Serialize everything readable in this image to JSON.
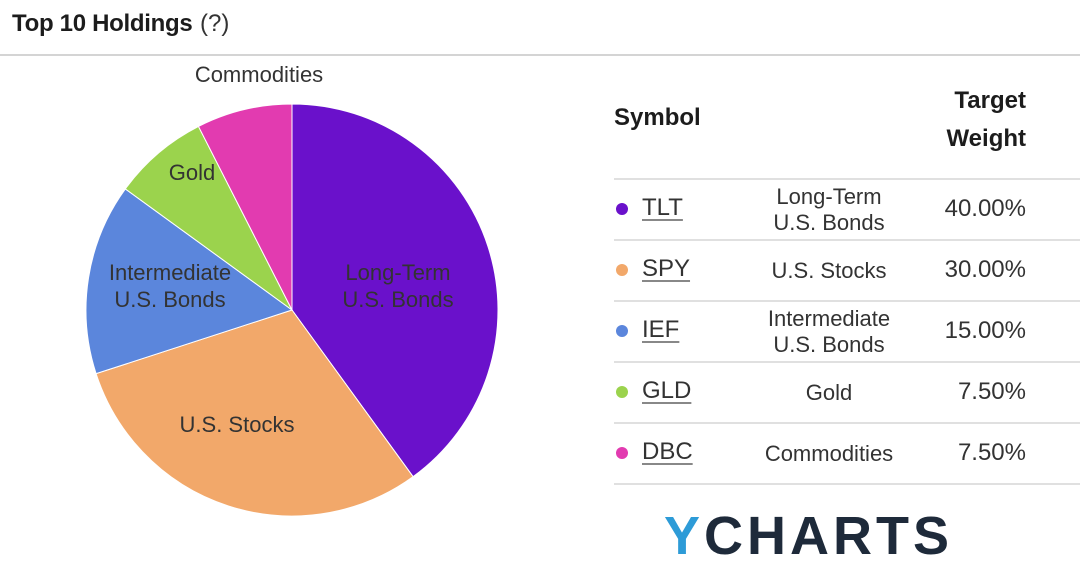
{
  "header": {
    "title": "Top 10 Holdings",
    "help": "(?)"
  },
  "chart_data": {
    "type": "pie",
    "title": "",
    "slices": [
      {
        "label": "Long-Term U.S. Bonds",
        "value": 40.0,
        "color": "#6a11cb"
      },
      {
        "label": "U.S. Stocks",
        "value": 30.0,
        "color": "#f2a86a"
      },
      {
        "label": "Intermediate U.S. Bonds",
        "value": 15.0,
        "color": "#5b86dc"
      },
      {
        "label": "Gold",
        "value": 7.5,
        "color": "#9bd34d"
      },
      {
        "label": "Commodities",
        "value": 7.5,
        "color": "#e23bb0"
      }
    ]
  },
  "table": {
    "headers": {
      "symbol": "Symbol",
      "weight_line1": "Target",
      "weight_line2": "Weight"
    },
    "rows": [
      {
        "symbol": "TLT",
        "name": "Long-Term\nU.S. Bonds",
        "weight": "40.00%",
        "color": "#6a11cb"
      },
      {
        "symbol": "SPY",
        "name": "U.S. Stocks",
        "weight": "30.00%",
        "color": "#f2a86a"
      },
      {
        "symbol": "IEF",
        "name": "Intermediate\nU.S. Bonds",
        "weight": "15.00%",
        "color": "#5b86dc"
      },
      {
        "symbol": "GLD",
        "name": "Gold",
        "weight": "7.50%",
        "color": "#9bd34d"
      },
      {
        "symbol": "DBC",
        "name": "Commodities",
        "weight": "7.50%",
        "color": "#e23bb0"
      }
    ]
  },
  "logo": {
    "y": "Y",
    "rest": "CHARTS"
  }
}
